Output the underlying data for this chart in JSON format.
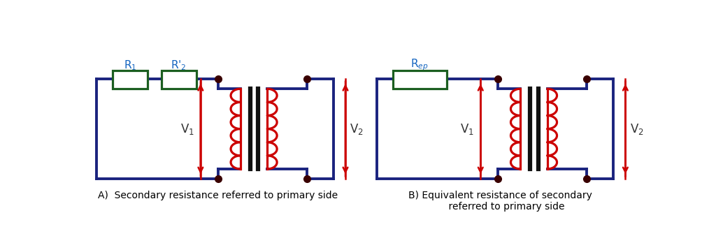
{
  "bg_color": "#ffffff",
  "wire_color": "#1a237e",
  "resistor_color": "#1b5e20",
  "coil_color": "#cc0000",
  "core_color": "#111111",
  "dot_color": "#3a0000",
  "arrow_color": "#cc0000",
  "text_color": "#333333",
  "label_color": "#1565c0",
  "wire_lw": 2.8,
  "resistor_lw": 2.3,
  "coil_lw": 2.3,
  "core_lw": 4.5,
  "caption_A": "A)  Secondary resistance referred to primary side",
  "caption_B": "B) Equivalent resistance of secondary\n    referred to primary side"
}
